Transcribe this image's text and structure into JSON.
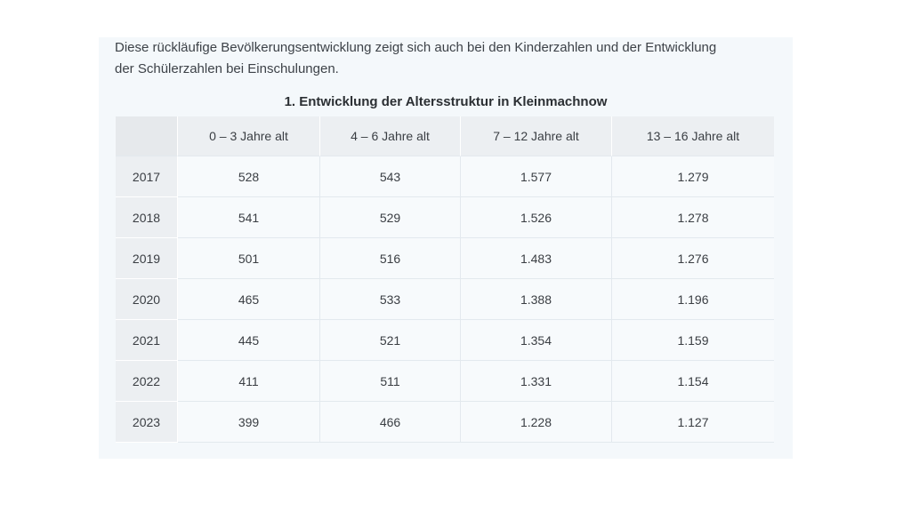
{
  "intro": {
    "line1": "Diese rückläufige Bevölkerungsentwicklung zeigt sich auch bei den Kinderzahlen und der Entwicklung",
    "line2": "der Schülerzahlen bei Einschulungen."
  },
  "table": {
    "title": "1. Entwicklung der Altersstruktur in Kleinmachnow",
    "headers": [
      "",
      "0 – 3 Jahre alt",
      "4 – 6 Jahre alt",
      "7 – 12 Jahre alt",
      "13 – 16 Jahre alt"
    ],
    "rows": [
      [
        "2017",
        "528",
        "543",
        "1.577",
        "1.279"
      ],
      [
        "2018",
        "541",
        "529",
        "1.526",
        "1.278"
      ],
      [
        "2019",
        "501",
        "516",
        "1.483",
        "1.276"
      ],
      [
        "2020",
        "465",
        "533",
        "1.388",
        "1.196"
      ],
      [
        "2021",
        "445",
        "521",
        "1.354",
        "1.159"
      ],
      [
        "2022",
        "411",
        "511",
        "1.331",
        "1.154"
      ],
      [
        "2023",
        "399",
        "466",
        "1.228",
        "1.127"
      ]
    ]
  }
}
